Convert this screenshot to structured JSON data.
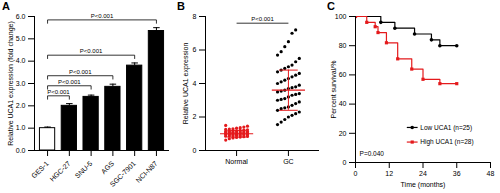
{
  "chart_data": [
    {
      "type": "bar",
      "title": "A",
      "categories": [
        "GES-1",
        "HGC-27",
        "SNU-5",
        "AGS",
        "SGC-7901",
        "NCI-N87"
      ],
      "values": [
        1.0,
        2.0,
        2.4,
        2.85,
        3.8,
        5.35
      ],
      "errors": [
        0.05,
        0.1,
        0.08,
        0.12,
        0.12,
        0.15
      ],
      "colors": [
        "#ffffff",
        "#000000",
        "#000000",
        "#000000",
        "#000000",
        "#000000"
      ],
      "y_label": "Relative UCA1 expression (fold change)",
      "ylim": [
        0,
        6
      ],
      "yticks": [
        0,
        1,
        2,
        3,
        4,
        5,
        6
      ],
      "annotations": [
        {
          "from": "GES-1",
          "to": "HGC-27",
          "label": "P<0.001"
        },
        {
          "from": "GES-1",
          "to": "SNU-5",
          "label": "P<0.001"
        },
        {
          "from": "GES-1",
          "to": "AGS",
          "label": "P<0.001"
        },
        {
          "from": "GES-1",
          "to": "SGC-7901",
          "label": "P<0.001"
        },
        {
          "from": "GES-1",
          "to": "NCI-N87",
          "label": "P<0.001"
        }
      ]
    },
    {
      "type": "scatter",
      "title": "B",
      "y_label": "Relative UCA1 expression",
      "ylim": [
        0,
        8
      ],
      "yticks": [
        0,
        2,
        4,
        6,
        8
      ],
      "color": "#e41a1c",
      "series": [
        {
          "name": "Normal",
          "color": "#e41a1c",
          "mean": 1.0,
          "sd": 0.2,
          "values": [
            0.62,
            0.7,
            0.75,
            0.78,
            0.8,
            0.82,
            0.84,
            0.85,
            0.87,
            0.88,
            0.9,
            0.9,
            0.92,
            0.93,
            0.94,
            0.95,
            0.96,
            0.97,
            0.98,
            0.99,
            1.0,
            1.0,
            1.01,
            1.02,
            1.03,
            1.04,
            1.05,
            1.06,
            1.07,
            1.08,
            1.09,
            1.1,
            1.1,
            1.12,
            1.13,
            1.14,
            1.15,
            1.17,
            1.18,
            1.2,
            1.22,
            1.24,
            1.26,
            1.28,
            1.3,
            1.33,
            1.36,
            1.4,
            1.45,
            1.5
          ]
        },
        {
          "name": "GC",
          "color": "#000000",
          "mean": 3.6,
          "sd": 1.2,
          "values": [
            1.55,
            1.7,
            1.85,
            2.0,
            2.1,
            2.2,
            2.3,
            2.4,
            2.5,
            2.55,
            2.6,
            2.7,
            2.8,
            2.9,
            3.0,
            3.05,
            3.1,
            3.2,
            3.3,
            3.35,
            3.4,
            3.5,
            3.55,
            3.6,
            3.7,
            3.75,
            3.8,
            3.9,
            4.0,
            4.1,
            4.2,
            4.3,
            4.4,
            4.5,
            4.6,
            4.7,
            4.8,
            4.9,
            5.0,
            5.1,
            5.3,
            5.5,
            5.7,
            5.9,
            6.2,
            6.5,
            7.0,
            7.2
          ]
        }
      ],
      "annotations": [
        {
          "from": "Normal",
          "to": "GC",
          "label": "P<0.001"
        }
      ]
    },
    {
      "type": "step",
      "title": "C",
      "x_label": "Time (months)",
      "y_label": "Percent survival/%",
      "xlim": [
        0,
        48
      ],
      "xticks": [
        0,
        12,
        24,
        36,
        48
      ],
      "ylim": [
        0,
        100
      ],
      "yticks": [
        0,
        20,
        40,
        60,
        80,
        100
      ],
      "legend": "bottom-right",
      "series": [
        {
          "name": "Low UCA1 (n=25)",
          "color": "#000000",
          "marker": "circle",
          "x": [
            0,
            9,
            14,
            21,
            27,
            30,
            36
          ],
          "values": [
            100,
            96,
            92,
            88,
            84,
            80,
            80
          ]
        },
        {
          "name": "High UCA1 (n=28)",
          "color": "#e41a1c",
          "marker": "square",
          "x": [
            0,
            4,
            7,
            8,
            11,
            15,
            20,
            24,
            30,
            36
          ],
          "values": [
            100,
            96,
            93,
            89,
            82,
            71,
            64,
            57,
            54,
            54
          ]
        }
      ],
      "annotations": [
        {
          "label": "P=0.040"
        }
      ]
    }
  ]
}
